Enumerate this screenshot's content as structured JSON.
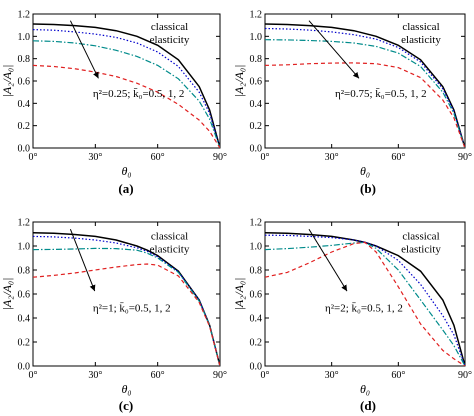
{
  "chart_data": [
    {
      "panel": "(a)",
      "type": "line",
      "annotation": "η²=0.25; k̄₀=0.5, 1, 2",
      "label_text": [
        "classical",
        "elasticity"
      ],
      "xlabel": "θ₀",
      "ylabel": "|A₂/A₀|",
      "xlim": [
        0,
        90
      ],
      "ylim": [
        0,
        1.2
      ],
      "xticks": [
        "0°",
        "30°",
        "60°",
        "90°"
      ],
      "yticks": [
        "0.0",
        "0.2",
        "0.4",
        "0.6",
        "0.8",
        "1.0",
        "1.2"
      ],
      "x": [
        0,
        10,
        20,
        30,
        40,
        50,
        60,
        70,
        80,
        85,
        90
      ],
      "series": [
        {
          "style": "solid",
          "color": "#000000",
          "values": [
            1.11,
            1.106,
            1.096,
            1.08,
            1.05,
            1.0,
            0.92,
            0.79,
            0.55,
            0.34,
            0.0
          ]
        },
        {
          "style": "dot",
          "color": "#0000cc",
          "values": [
            1.06,
            1.055,
            1.04,
            1.02,
            0.99,
            0.94,
            0.86,
            0.73,
            0.5,
            0.31,
            0.0
          ]
        },
        {
          "style": "dashdot",
          "color": "#008b8b",
          "values": [
            0.96,
            0.955,
            0.94,
            0.915,
            0.875,
            0.82,
            0.74,
            0.62,
            0.42,
            0.26,
            0.0
          ]
        },
        {
          "style": "dash",
          "color": "#e02020",
          "values": [
            0.74,
            0.73,
            0.71,
            0.68,
            0.64,
            0.58,
            0.5,
            0.39,
            0.25,
            0.15,
            0.0
          ]
        }
      ]
    },
    {
      "panel": "(b)",
      "type": "line",
      "annotation": "η²=0.75; k̄₀=0.5, 1, 2",
      "label_text": [
        "classical",
        "elasticity"
      ],
      "xlabel": "θ₀",
      "ylabel": "|A₂/A₀|",
      "xlim": [
        0,
        90
      ],
      "ylim": [
        0,
        1.2
      ],
      "xticks": [
        "0°",
        "30°",
        "60°",
        "90°"
      ],
      "yticks": [
        "0.0",
        "0.2",
        "0.4",
        "0.6",
        "0.8",
        "1.0",
        "1.2"
      ],
      "x": [
        0,
        10,
        20,
        30,
        40,
        50,
        60,
        70,
        80,
        85,
        90
      ],
      "series": [
        {
          "style": "solid",
          "color": "#000000",
          "values": [
            1.11,
            1.106,
            1.096,
            1.08,
            1.05,
            1.0,
            0.92,
            0.79,
            0.55,
            0.34,
            0.0
          ]
        },
        {
          "style": "dot",
          "color": "#0000cc",
          "values": [
            1.07,
            1.066,
            1.056,
            1.04,
            1.015,
            0.975,
            0.9,
            0.77,
            0.53,
            0.33,
            0.0
          ]
        },
        {
          "style": "dashdot",
          "color": "#008b8b",
          "values": [
            0.97,
            0.968,
            0.963,
            0.955,
            0.94,
            0.91,
            0.85,
            0.73,
            0.5,
            0.31,
            0.0
          ]
        },
        {
          "style": "dash",
          "color": "#e02020",
          "values": [
            0.74,
            0.745,
            0.755,
            0.76,
            0.762,
            0.755,
            0.72,
            0.63,
            0.43,
            0.27,
            0.0
          ]
        }
      ]
    },
    {
      "panel": "(c)",
      "type": "line",
      "annotation": "η²=1; k̄₀=0.5, 1, 2",
      "label_text": [
        "classical",
        "elasticity"
      ],
      "xlabel": "θ₀",
      "ylabel": "|A₂/A₀|",
      "xlim": [
        0,
        90
      ],
      "ylim": [
        0,
        1.2
      ],
      "xticks": [
        "0°",
        "30°",
        "60°",
        "90°"
      ],
      "yticks": [
        "0.0",
        "0.2",
        "0.4",
        "0.6",
        "0.8",
        "1.0",
        "1.2"
      ],
      "x": [
        0,
        10,
        20,
        30,
        40,
        50,
        55,
        60,
        70,
        80,
        85,
        90
      ],
      "series": [
        {
          "style": "solid",
          "color": "#000000",
          "values": [
            1.11,
            1.106,
            1.096,
            1.08,
            1.05,
            1.0,
            0.965,
            0.92,
            0.79,
            0.55,
            0.34,
            0.0
          ]
        },
        {
          "style": "dot",
          "color": "#0000cc",
          "values": [
            1.08,
            1.076,
            1.066,
            1.05,
            1.025,
            0.985,
            0.955,
            0.91,
            0.785,
            0.55,
            0.34,
            0.0
          ]
        },
        {
          "style": "dashdot",
          "color": "#008b8b",
          "values": [
            0.97,
            0.972,
            0.975,
            0.98,
            0.978,
            0.965,
            0.94,
            0.9,
            0.78,
            0.54,
            0.34,
            0.0
          ]
        },
        {
          "style": "dash",
          "color": "#e02020",
          "values": [
            0.74,
            0.755,
            0.775,
            0.8,
            0.825,
            0.845,
            0.85,
            0.84,
            0.75,
            0.53,
            0.33,
            0.0
          ]
        }
      ]
    },
    {
      "panel": "(d)",
      "type": "line",
      "annotation": "η²=2; k̄₀=0.5, 1, 2",
      "label_text": [
        "classical",
        "elasticity"
      ],
      "xlabel": "θ₀",
      "ylabel": "|A₂/A₀|",
      "xlim": [
        0,
        90
      ],
      "ylim": [
        0,
        1.2
      ],
      "xticks": [
        "0°",
        "30°",
        "60°",
        "90°"
      ],
      "yticks": [
        "0.0",
        "0.2",
        "0.4",
        "0.6",
        "0.8",
        "1.0",
        "1.2"
      ],
      "x": [
        0,
        10,
        20,
        30,
        40,
        45,
        50,
        60,
        70,
        80,
        85,
        90
      ],
      "series": [
        {
          "style": "solid",
          "color": "#000000",
          "values": [
            1.11,
            1.106,
            1.096,
            1.08,
            1.05,
            1.03,
            1.0,
            0.92,
            0.79,
            0.55,
            0.34,
            0.0
          ]
        },
        {
          "style": "dot",
          "color": "#0000cc",
          "values": [
            1.09,
            1.088,
            1.08,
            1.07,
            1.05,
            1.03,
            1.0,
            0.88,
            0.68,
            0.42,
            0.26,
            0.0
          ]
        },
        {
          "style": "dashdot",
          "color": "#008b8b",
          "values": [
            0.97,
            0.978,
            0.99,
            1.005,
            1.025,
            1.03,
            0.98,
            0.8,
            0.55,
            0.3,
            0.17,
            0.0
          ]
        },
        {
          "style": "dash",
          "color": "#e02020",
          "values": [
            0.74,
            0.78,
            0.86,
            0.95,
            1.02,
            1.03,
            0.95,
            0.66,
            0.35,
            0.13,
            0.06,
            0.0
          ]
        }
      ]
    }
  ]
}
